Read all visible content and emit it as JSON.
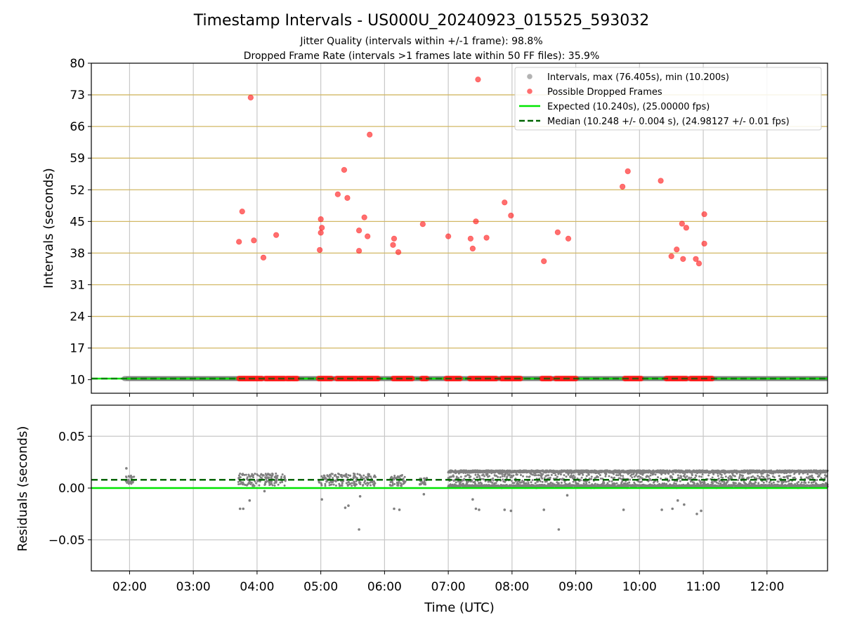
{
  "figure": {
    "title": "Timestamp Intervals - US000U_20240923_015525_593032",
    "subtitle_1": "Jitter Quality (intervals within +/-1 frame): 98.8%",
    "subtitle_2": "Dropped Frame Rate (intervals >1 frames late within 50 FF files): 35.9%"
  },
  "colors": {
    "expected": "#00e600",
    "median": "#006400",
    "intervals": "#808080",
    "dropped": "#ff2020",
    "ref_grid": "#d2b864",
    "grid": "#c8c8c8"
  },
  "chart_data": [
    {
      "type": "scatter",
      "name": "intervals",
      "xlabel": "",
      "ylabel": "Intervals (seconds)",
      "xlim": [
        "01:24",
        "12:57"
      ],
      "ylim": [
        7,
        80
      ],
      "yticks": [
        10,
        17,
        24,
        31,
        38,
        45,
        52,
        59,
        66,
        73,
        80
      ],
      "ytick_labels": [
        "10",
        "17",
        "24",
        "31",
        "38",
        "45",
        "52",
        "59",
        "66",
        "73",
        "80"
      ],
      "horizontal_reference_lines": [
        17,
        24,
        31,
        38,
        45,
        52,
        59,
        66,
        73
      ],
      "grid": true,
      "legend_position": "upper right",
      "legend": [
        {
          "label": "Intervals, max (76.405s), min (10.200s)",
          "kind": "marker",
          "color": "#a6a6a6"
        },
        {
          "label": "Possible Dropped Frames",
          "kind": "marker",
          "color": "#ff5555"
        },
        {
          "label": "Expected (10.240s), (25.00000 fps)",
          "kind": "line",
          "color": "#00e600"
        },
        {
          "label": "Median (10.248 +/- 0.004 s), (24.98127 +/- 0.01 fps)",
          "kind": "dashed",
          "color": "#006400"
        }
      ],
      "expected_value": 10.24,
      "median_value": 10.248,
      "interval_series_time_range": [
        "01:55",
        "12:57"
      ],
      "dropped_baseline_ranges": [
        [
          "03:43",
          "04:05"
        ],
        [
          "04:08",
          "04:27"
        ],
        [
          "04:28",
          "04:32"
        ],
        [
          "04:33",
          "04:38"
        ],
        [
          "04:58",
          "05:11"
        ],
        [
          "05:15",
          "05:35"
        ],
        [
          "05:36",
          "05:55"
        ],
        [
          "06:08",
          "06:27"
        ],
        [
          "06:35",
          "06:40"
        ],
        [
          "06:58",
          "07:12"
        ],
        [
          "07:20",
          "07:46"
        ],
        [
          "07:50",
          "08:08"
        ],
        [
          "08:28",
          "08:37"
        ],
        [
          "08:41",
          "09:01"
        ],
        [
          "09:46",
          "10:02"
        ],
        [
          "10:25",
          "10:45"
        ],
        [
          "10:48",
          "11:09"
        ]
      ],
      "dropped_points": [
        {
          "x": "03:43",
          "y": 40.5
        },
        {
          "x": "03:46",
          "y": 47.2
        },
        {
          "x": "03:54",
          "y": 72.4
        },
        {
          "x": "03:57",
          "y": 40.8
        },
        {
          "x": "04:06",
          "y": 37.0
        },
        {
          "x": "04:18",
          "y": 42.0
        },
        {
          "x": "04:59",
          "y": 38.7
        },
        {
          "x": "05:00",
          "y": 45.5
        },
        {
          "x": "05:00",
          "y": 42.5
        },
        {
          "x": "05:01",
          "y": 43.6
        },
        {
          "x": "05:16",
          "y": 51.0
        },
        {
          "x": "05:22",
          "y": 56.4
        },
        {
          "x": "05:25",
          "y": 50.2
        },
        {
          "x": "05:36",
          "y": 43.0
        },
        {
          "x": "05:36",
          "y": 38.5
        },
        {
          "x": "05:41",
          "y": 45.9
        },
        {
          "x": "05:44",
          "y": 41.7
        },
        {
          "x": "05:46",
          "y": 64.2
        },
        {
          "x": "06:08",
          "y": 39.8
        },
        {
          "x": "06:09",
          "y": 41.2
        },
        {
          "x": "06:13",
          "y": 38.2
        },
        {
          "x": "06:36",
          "y": 44.4
        },
        {
          "x": "07:00",
          "y": 41.7
        },
        {
          "x": "07:21",
          "y": 41.2
        },
        {
          "x": "07:23",
          "y": 39.0
        },
        {
          "x": "07:26",
          "y": 45.0
        },
        {
          "x": "07:28",
          "y": 76.4
        },
        {
          "x": "07:36",
          "y": 41.4
        },
        {
          "x": "07:53",
          "y": 49.2
        },
        {
          "x": "07:59",
          "y": 46.3
        },
        {
          "x": "08:30",
          "y": 36.2
        },
        {
          "x": "08:43",
          "y": 42.6
        },
        {
          "x": "08:53",
          "y": 41.2
        },
        {
          "x": "09:44",
          "y": 52.7
        },
        {
          "x": "09:49",
          "y": 56.1
        },
        {
          "x": "10:20",
          "y": 54.0
        },
        {
          "x": "10:30",
          "y": 37.3
        },
        {
          "x": "10:35",
          "y": 38.8
        },
        {
          "x": "10:40",
          "y": 44.5
        },
        {
          "x": "10:41",
          "y": 36.7
        },
        {
          "x": "10:44",
          "y": 43.6
        },
        {
          "x": "10:53",
          "y": 36.7
        },
        {
          "x": "10:56",
          "y": 35.7
        },
        {
          "x": "11:01",
          "y": 46.6
        },
        {
          "x": "11:01",
          "y": 40.1
        }
      ]
    },
    {
      "type": "scatter",
      "name": "residuals",
      "xlabel": "Time (UTC)",
      "ylabel": "Residuals (seconds)",
      "xlim": [
        "01:24",
        "12:57"
      ],
      "ylim": [
        -0.08,
        0.08
      ],
      "yticks": [
        -0.05,
        0.0,
        0.05
      ],
      "ytick_labels": [
        "−0.05",
        "0.00",
        "0.05"
      ],
      "xticks": [
        "02:00",
        "03:00",
        "04:00",
        "05:00",
        "06:00",
        "07:00",
        "08:00",
        "09:00",
        "10:00",
        "11:00",
        "12:00"
      ],
      "xtick_labels": [
        "02:00",
        "03:00",
        "04:00",
        "05:00",
        "06:00",
        "07:00",
        "08:00",
        "09:00",
        "10:00",
        "11:00",
        "12:00"
      ],
      "grid": true,
      "expected_residual": 0.0,
      "median_residual": 0.008,
      "early_segments": [
        {
          "range": [
            "01:55",
            "02:05"
          ],
          "low": 0.004,
          "high": 0.012
        },
        {
          "range": [
            "03:42",
            "04:27"
          ],
          "low": 0.002,
          "high": 0.014
        },
        {
          "range": [
            "04:58",
            "05:35"
          ],
          "low": 0.002,
          "high": 0.014
        },
        {
          "range": [
            "05:36",
            "05:52"
          ],
          "low": 0.002,
          "high": 0.014
        },
        {
          "range": [
            "06:05",
            "06:20"
          ],
          "low": 0.002,
          "high": 0.013
        },
        {
          "range": [
            "06:33",
            "06:40"
          ],
          "low": 0.003,
          "high": 0.01
        }
      ],
      "dense_band": {
        "range": [
          "07:00",
          "12:57"
        ],
        "low": 0.0,
        "high": 0.017
      },
      "outliers": [
        {
          "x": "01:57",
          "y": 0.019
        },
        {
          "x": "03:44",
          "y": -0.02
        },
        {
          "x": "03:47",
          "y": -0.02
        },
        {
          "x": "03:53",
          "y": -0.012
        },
        {
          "x": "04:07",
          "y": -0.003
        },
        {
          "x": "05:01",
          "y": -0.011
        },
        {
          "x": "05:23",
          "y": -0.019
        },
        {
          "x": "05:26",
          "y": -0.017
        },
        {
          "x": "05:36",
          "y": -0.04
        },
        {
          "x": "05:37",
          "y": -0.008
        },
        {
          "x": "06:09",
          "y": -0.02
        },
        {
          "x": "06:14",
          "y": -0.021
        },
        {
          "x": "06:37",
          "y": -0.006
        },
        {
          "x": "07:23",
          "y": -0.011
        },
        {
          "x": "07:26",
          "y": -0.02
        },
        {
          "x": "07:29",
          "y": -0.021
        },
        {
          "x": "07:53",
          "y": -0.021
        },
        {
          "x": "07:59",
          "y": -0.022
        },
        {
          "x": "08:30",
          "y": -0.021
        },
        {
          "x": "08:44",
          "y": -0.04
        },
        {
          "x": "08:52",
          "y": -0.007
        },
        {
          "x": "09:45",
          "y": -0.021
        },
        {
          "x": "10:21",
          "y": -0.021
        },
        {
          "x": "10:31",
          "y": -0.02
        },
        {
          "x": "10:36",
          "y": -0.012
        },
        {
          "x": "10:42",
          "y": -0.016
        },
        {
          "x": "10:54",
          "y": -0.025
        },
        {
          "x": "10:58",
          "y": -0.022
        }
      ]
    }
  ]
}
